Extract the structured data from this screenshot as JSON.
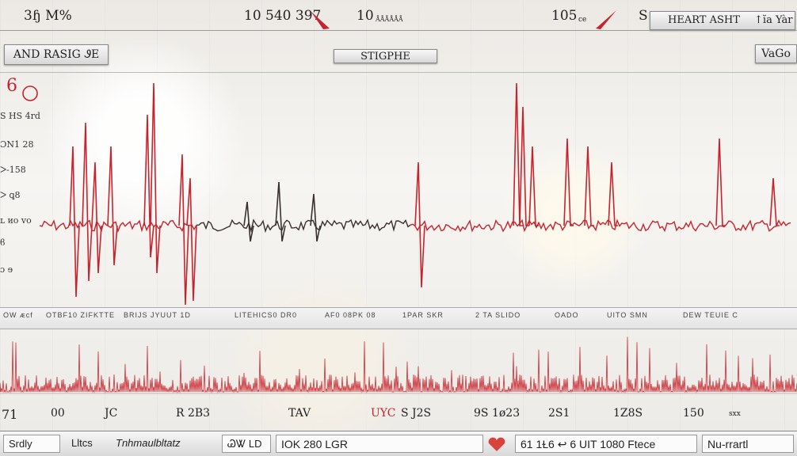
{
  "header": {
    "left": "3ɧ  M%",
    "reading1": "10 540 397",
    "reading2": "10",
    "reading2_sub": "ÅÅÅÅÅÅ",
    "reading3": "105",
    "reading3_sub": "ce",
    "right_prefix": "S",
    "title": "HEART ASHT",
    "right_suffix": "↑ĭa Yàr"
  },
  "toolbar": {
    "left_button": "AND RASIG  ᏭE",
    "center_button": "STIGPHE",
    "right_button": "VaGo"
  },
  "axis_labels": [
    "6",
    "S HS 4rd",
    "ƆN1 28",
    "ᐳ-158",
    "ᐳ ꝗ8",
    "ʟ ᴎo vo",
    "ϐ",
    "ɔ ɘ"
  ],
  "tick_strip": [
    "OW  ᴁcf",
    "OTBF10 ZIFKTTE",
    "BRIJS JYUUT 1D",
    "LITEHICS0 DR0",
    "AF0 08PK 08",
    "1PAR SKR",
    "2 TA SLIDO",
    "OADO",
    "UITO SMN",
    "DEW TEUIE C"
  ],
  "bottom_numbers": [
    "71",
    "00",
    "JC",
    "R  2B3",
    "TAV",
    "UYC",
    "S  J2S",
    "9S  1ø23",
    "2S1",
    "1Z8S",
    "150",
    "sxx"
  ],
  "status": {
    "left": "Srdly",
    "units": "Lltcs",
    "mode": "Tnhmaulbltatz",
    "icon_label": "ᏊᏔ LD",
    "value1": "IOK 280  LGR",
    "value2": "61 1Ɫ6  ↩  6 UIT  1080  Ftece",
    "right": "Nu-rrartl"
  },
  "colors": {
    "trace_red": "#c8232c",
    "trace_dark": "#3a3030",
    "accent": "#d9433a"
  }
}
